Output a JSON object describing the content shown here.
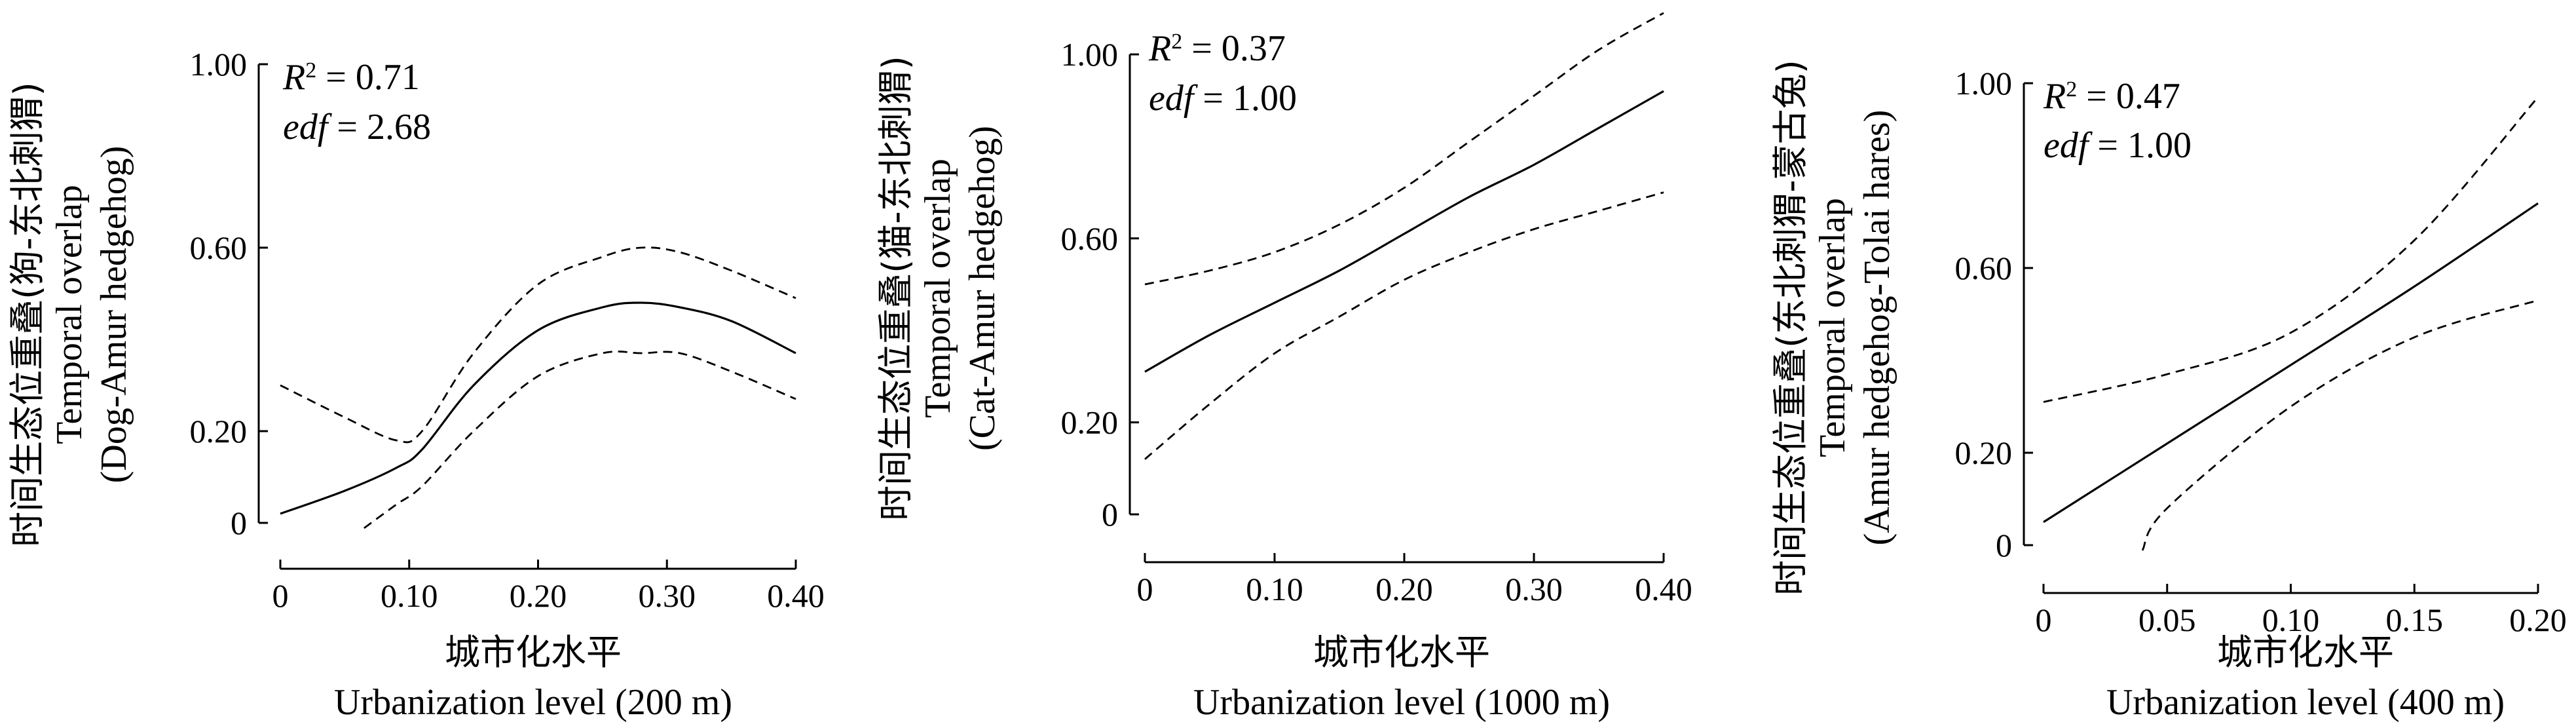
{
  "chart_data": [
    {
      "type": "line",
      "stats": {
        "r2": "0.71",
        "edf": "2.68"
      },
      "xlabel_cn": "城市化水平",
      "xlabel_en": "Urbanization level (200 m)",
      "ylabel_cn": "时间生态位重叠(狗-东北刺猬)",
      "ylabel_en1": "Temporal overlap",
      "ylabel_en2": "(Dog-Amur hedgehog)",
      "xlim": [
        0,
        0.4
      ],
      "ylim": [
        0,
        1.0
      ],
      "xticks": [
        0,
        0.1,
        0.2,
        0.3,
        0.4
      ],
      "xtick_labels": [
        "0",
        "0.10",
        "0.20",
        "0.30",
        "0.40"
      ],
      "yticks": [
        0,
        0.2,
        0.6,
        1.0
      ],
      "ytick_labels": [
        "0",
        "0.20",
        "0.60",
        "1.00"
      ],
      "x": [
        0,
        0.05,
        0.09,
        0.11,
        0.15,
        0.2,
        0.25,
        0.28,
        0.31,
        0.35,
        0.4
      ],
      "series": [
        {
          "style": "solid",
          "values": [
            0.02,
            0.07,
            0.12,
            0.16,
            0.3,
            0.42,
            0.47,
            0.48,
            0.47,
            0.44,
            0.37
          ]
        },
        {
          "style": "dashed",
          "values": [
            0.3,
            0.23,
            0.18,
            0.2,
            0.37,
            0.52,
            0.58,
            0.6,
            0.59,
            0.55,
            0.49
          ]
        },
        {
          "style": "dashed",
          "values": [
            null,
            null,
            0.04,
            0.08,
            0.2,
            0.32,
            0.37,
            0.37,
            0.37,
            0.33,
            0.27
          ]
        }
      ],
      "dashed_start_x": [
        null,
        null,
        0.065
      ]
    },
    {
      "type": "line",
      "stats": {
        "r2": "0.37",
        "edf": "1.00"
      },
      "xlabel_cn": "城市化水平",
      "xlabel_en": "Urbanization level (1000 m)",
      "ylabel_cn": "时间生态位重叠(猫-东北刺猬)",
      "ylabel_en1": "Temporal overlap",
      "ylabel_en2": "(Cat-Amur hedgehog)",
      "xlim": [
        0,
        0.4
      ],
      "ylim": [
        0,
        1.0
      ],
      "xticks": [
        0,
        0.1,
        0.2,
        0.3,
        0.4
      ],
      "xtick_labels": [
        "0",
        "0.10",
        "0.20",
        "0.30",
        "0.40"
      ],
      "yticks": [
        0,
        0.2,
        0.6,
        1.0
      ],
      "ytick_labels": [
        "0",
        "0.20",
        "0.60",
        "1.00"
      ],
      "x": [
        0,
        0.05,
        0.1,
        0.15,
        0.2,
        0.25,
        0.3,
        0.35,
        0.4
      ],
      "series": [
        {
          "style": "solid",
          "values": [
            0.31,
            0.39,
            0.46,
            0.53,
            0.61,
            0.69,
            0.76,
            0.84,
            0.92
          ]
        },
        {
          "style": "dashed",
          "values": [
            0.5,
            0.53,
            0.57,
            0.63,
            0.71,
            0.81,
            0.91,
            1.01,
            1.09
          ]
        },
        {
          "style": "dashed",
          "values": [
            0.12,
            0.24,
            0.35,
            0.43,
            0.51,
            0.57,
            0.62,
            0.66,
            0.7
          ]
        }
      ]
    },
    {
      "type": "line",
      "stats": {
        "r2": "0.47",
        "edf": "1.00"
      },
      "xlabel_cn": "城市化水平",
      "xlabel_en": "Urbanization level (400 m)",
      "ylabel_cn": "时间生态位重叠(东北刺猬-蒙古兔)",
      "ylabel_en1": "Temporal overlap",
      "ylabel_en2": "(Amur hedgehog-Tolai hares)",
      "xlim": [
        0,
        0.2
      ],
      "ylim": [
        0,
        1.0
      ],
      "xticks": [
        0,
        0.05,
        0.1,
        0.15,
        0.2
      ],
      "xtick_labels": [
        "0",
        "0.05",
        "0.10",
        "0.15",
        "0.20"
      ],
      "yticks": [
        0,
        0.2,
        0.6,
        1.0
      ],
      "ytick_labels": [
        "0",
        "0.20",
        "0.60",
        "1.00"
      ],
      "x": [
        0,
        0.05,
        0.1,
        0.15,
        0.2
      ],
      "series": [
        {
          "style": "solid",
          "values": [
            0.05,
            0.22,
            0.39,
            0.56,
            0.74
          ]
        },
        {
          "style": "dashed",
          "values": [
            0.31,
            0.37,
            0.46,
            0.66,
            0.97
          ]
        },
        {
          "style": "dashed",
          "values": [
            null,
            0.08,
            0.3,
            0.45,
            0.53
          ]
        }
      ],
      "dashed_start_x": [
        null,
        null,
        0.04
      ]
    }
  ]
}
